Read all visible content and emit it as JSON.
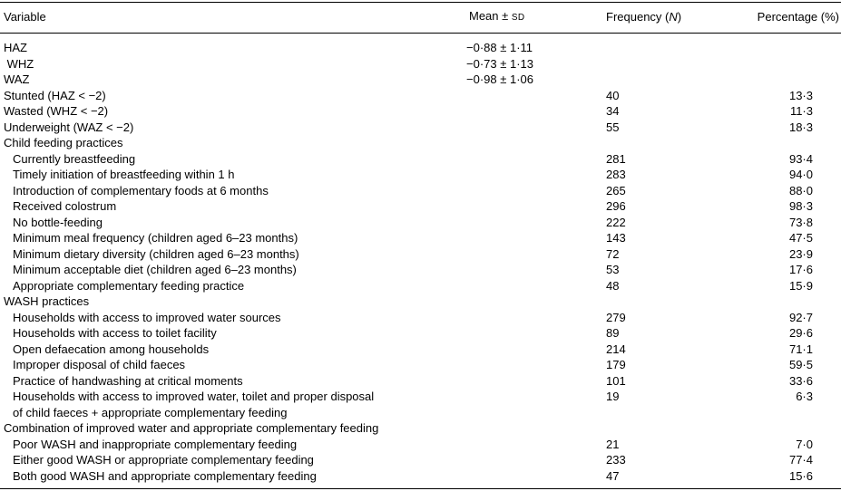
{
  "table": {
    "headers": {
      "variable": "Variable",
      "mean_prefix": "Mean ± ",
      "mean_sd": "SD",
      "frequency_prefix": "Frequency (",
      "frequency_n": "N",
      "frequency_suffix": ")",
      "percentage": "Percentage (%)"
    },
    "rows": [
      {
        "label": "HAZ",
        "indent": 0,
        "mean": "−0·88 ± 1·11",
        "freq": "",
        "pct": ""
      },
      {
        "label": " WHZ",
        "indent": 0,
        "mean": "−0·73 ± 1·13",
        "freq": "",
        "pct": ""
      },
      {
        "label": "WAZ",
        "indent": 0,
        "mean": "−0·98 ± 1·06",
        "freq": "",
        "pct": ""
      },
      {
        "label": "Stunted (HAZ < −2)",
        "indent": 0,
        "mean": "",
        "freq": "40",
        "pct": "13·3"
      },
      {
        "label": "Wasted (WHZ < −2)",
        "indent": 0,
        "mean": "",
        "freq": "34",
        "pct": "11·3"
      },
      {
        "label": "Underweight (WAZ < −2)",
        "indent": 0,
        "mean": "",
        "freq": "55",
        "pct": "18·3"
      },
      {
        "label": "Child feeding practices",
        "indent": 0,
        "mean": "",
        "freq": "",
        "pct": ""
      },
      {
        "label": "Currently breastfeeding",
        "indent": 1,
        "mean": "",
        "freq": "281",
        "pct": "93·4"
      },
      {
        "label": "Timely initiation of breastfeeding within 1 h",
        "indent": 1,
        "mean": "",
        "freq": "283",
        "pct": "94·0"
      },
      {
        "label": "Introduction of complementary foods at 6 months",
        "indent": 1,
        "mean": "",
        "freq": "265",
        "pct": "88·0"
      },
      {
        "label": "Received colostrum",
        "indent": 1,
        "mean": "",
        "freq": "296",
        "pct": "98·3"
      },
      {
        "label": "No bottle-feeding",
        "indent": 1,
        "mean": "",
        "freq": "222",
        "pct": "73·8"
      },
      {
        "label": "Minimum meal frequency (children aged 6–23 months)",
        "indent": 1,
        "mean": "",
        "freq": "143",
        "pct": "47·5"
      },
      {
        "label": "Minimum dietary diversity (children aged 6–23 months)",
        "indent": 1,
        "mean": "",
        "freq": "72",
        "pct": "23·9"
      },
      {
        "label": "Minimum acceptable diet (children aged 6–23 months)",
        "indent": 1,
        "mean": "",
        "freq": "53",
        "pct": "17·6"
      },
      {
        "label": "Appropriate complementary feeding practice",
        "indent": 1,
        "mean": "",
        "freq": "48",
        "pct": "15·9"
      },
      {
        "label": "WASH practices",
        "indent": 0,
        "mean": "",
        "freq": "",
        "pct": ""
      },
      {
        "label": "Households with access to improved water sources",
        "indent": 1,
        "mean": "",
        "freq": "279",
        "pct": "92·7"
      },
      {
        "label": "Households with access to toilet facility",
        "indent": 1,
        "mean": "",
        "freq": "89",
        "pct": "29·6"
      },
      {
        "label": "Open defaecation among households",
        "indent": 1,
        "mean": "",
        "freq": "214",
        "pct": "71·1"
      },
      {
        "label": "Improper disposal of child faeces",
        "indent": 1,
        "mean": "",
        "freq": "179",
        "pct": "59·5"
      },
      {
        "label": "Practice of handwashing at critical moments",
        "indent": 1,
        "mean": "",
        "freq": "101",
        "pct": "33·6"
      },
      {
        "label": "Households with access to improved water, toilet and proper disposal\nof child faeces + appropriate complementary feeding",
        "indent": 1,
        "mean": "",
        "freq": "19",
        "pct": "6·3"
      },
      {
        "label": "Combination of improved water and appropriate complementary feeding",
        "indent": 0,
        "mean": "",
        "freq": "",
        "pct": ""
      },
      {
        "label": "Poor WASH and inappropriate complementary feeding",
        "indent": 1,
        "mean": "",
        "freq": "21",
        "pct": "7·0"
      },
      {
        "label": "Either good WASH or appropriate complementary feeding",
        "indent": 1,
        "mean": "",
        "freq": "233",
        "pct": "77·4"
      },
      {
        "label": "Both good WASH and appropriate complementary feeding",
        "indent": 1,
        "mean": "",
        "freq": "47",
        "pct": "15·6"
      }
    ]
  }
}
